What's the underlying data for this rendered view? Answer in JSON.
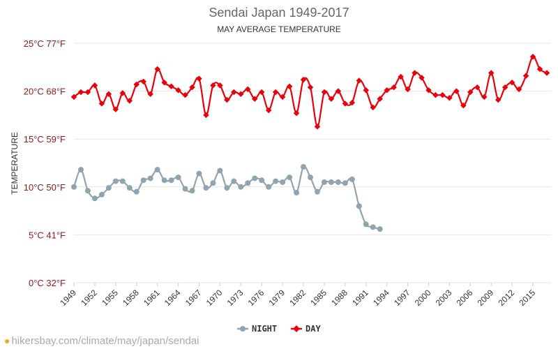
{
  "chart_data": {
    "type": "line",
    "title": "Sendai Japan 1949-2017",
    "subtitle": "MAY AVERAGE TEMPERATURE",
    "ylabel": "TEMPERATURE",
    "xlabel": "",
    "ylim": [
      0,
      25
    ],
    "xlim": [
      1949,
      2017
    ],
    "yticks": [
      {
        "value": 0,
        "label": "0°C 32°F"
      },
      {
        "value": 5,
        "label": "5°C 41°F"
      },
      {
        "value": 10,
        "label": "10°C 50°F"
      },
      {
        "value": 15,
        "label": "15°C 59°F"
      },
      {
        "value": 20,
        "label": "20°C 68°F"
      },
      {
        "value": 25,
        "label": "25°C 77°F"
      }
    ],
    "xticks": [
      1949,
      1952,
      1955,
      1958,
      1961,
      1964,
      1967,
      1970,
      1973,
      1976,
      1979,
      1982,
      1985,
      1988,
      1991,
      1994,
      1997,
      2000,
      2003,
      2006,
      2009,
      2012,
      2015
    ],
    "series": [
      {
        "name": "NIGHT",
        "color": "#90a4ae",
        "x": [
          1949,
          1950,
          1951,
          1952,
          1953,
          1954,
          1955,
          1956,
          1957,
          1958,
          1959,
          1960,
          1961,
          1962,
          1963,
          1964,
          1965,
          1966,
          1967,
          1968,
          1969,
          1970,
          1971,
          1972,
          1973,
          1974,
          1975,
          1976,
          1977,
          1978,
          1979,
          1980,
          1981,
          1982,
          1983,
          1984,
          1985,
          1986,
          1987,
          1988,
          1989,
          1990,
          1991,
          1992,
          1993
        ],
        "values": [
          10.0,
          11.8,
          9.6,
          8.8,
          9.2,
          9.9,
          10.6,
          10.6,
          9.9,
          9.5,
          10.7,
          10.9,
          11.8,
          10.7,
          10.7,
          11.0,
          9.8,
          9.6,
          11.4,
          9.9,
          10.4,
          11.7,
          9.9,
          10.6,
          10.0,
          10.4,
          10.9,
          10.7,
          10.0,
          10.6,
          10.5,
          11.0,
          9.4,
          12.1,
          11.0,
          9.5,
          10.5,
          10.5,
          10.5,
          10.4,
          10.8,
          8.0,
          6.1,
          5.8,
          5.6
        ]
      },
      {
        "name": "DAY",
        "color": "#e8000b",
        "x": [
          1949,
          1950,
          1951,
          1952,
          1953,
          1954,
          1955,
          1956,
          1957,
          1958,
          1959,
          1960,
          1961,
          1962,
          1963,
          1964,
          1965,
          1966,
          1967,
          1968,
          1969,
          1970,
          1971,
          1972,
          1973,
          1974,
          1975,
          1976,
          1977,
          1978,
          1979,
          1980,
          1981,
          1982,
          1983,
          1984,
          1985,
          1986,
          1987,
          1988,
          1989,
          1990,
          1991,
          1992,
          1993,
          1994,
          1995,
          1996,
          1997,
          1998,
          1999,
          2000,
          2001,
          2002,
          2003,
          2004,
          2005,
          2006,
          2007,
          2008,
          2009,
          2010,
          2011,
          2012,
          2013,
          2014,
          2015,
          2016,
          2017
        ],
        "values": [
          19.4,
          19.9,
          19.9,
          20.6,
          18.7,
          19.7,
          18.1,
          19.8,
          19.0,
          20.7,
          21.0,
          19.7,
          22.3,
          20.9,
          20.5,
          20.1,
          19.6,
          20.4,
          21.3,
          17.5,
          20.6,
          20.6,
          19.1,
          19.9,
          19.7,
          20.2,
          19.2,
          19.9,
          18.0,
          19.9,
          19.4,
          20.5,
          17.7,
          21.2,
          20.4,
          16.3,
          19.9,
          19.2,
          20.0,
          18.7,
          18.8,
          21.1,
          20.1,
          18.3,
          19.2,
          20.1,
          20.4,
          21.5,
          20.2,
          21.9,
          21.4,
          20.1,
          19.6,
          19.6,
          19.3,
          20.0,
          18.5,
          19.9,
          20.4,
          19.4,
          21.9,
          19.1,
          20.4,
          20.9,
          20.2,
          21.6,
          23.6,
          22.3,
          21.9
        ]
      }
    ],
    "legend": {
      "position": "bottom-center",
      "entries": [
        "NIGHT",
        "DAY"
      ]
    },
    "grid": true
  },
  "watermark": "hikersbay.com/climate/may/japan/sendai"
}
